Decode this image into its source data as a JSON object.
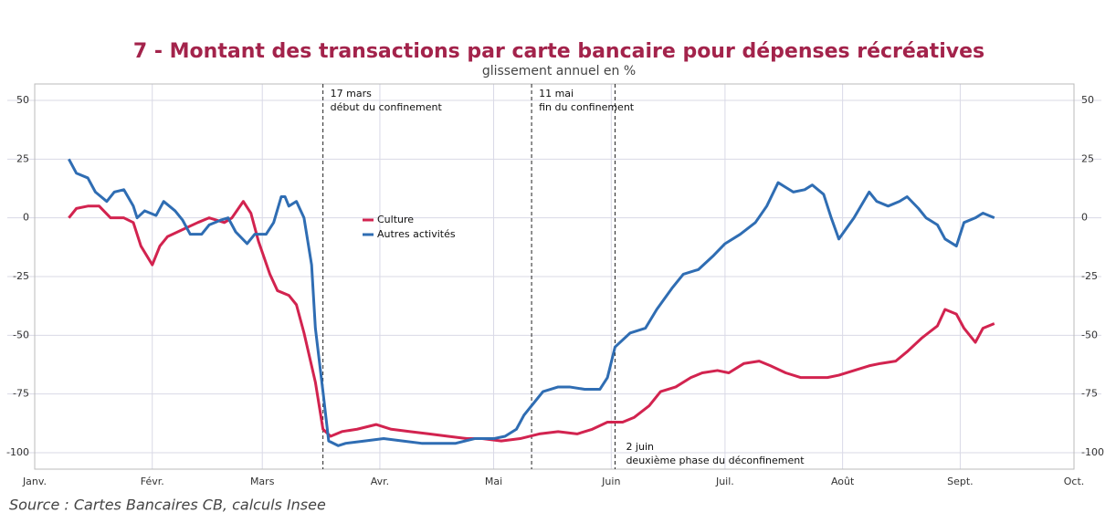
{
  "chart_data": {
    "type": "line",
    "title": "7 - Montant des transactions par carte bancaire pour dépenses récréatives",
    "subtitle": "glissement annuel en %",
    "source": "Source : Cartes Bancaires CB, calculs Insee",
    "xlim": [
      0,
      274
    ],
    "xticks": [
      {
        "value": 0,
        "label": "Janv."
      },
      {
        "value": 31,
        "label": "Févr."
      },
      {
        "value": 60,
        "label": "Mars"
      },
      {
        "value": 91,
        "label": "Avr."
      },
      {
        "value": 121,
        "label": "Mai"
      },
      {
        "value": 152,
        "label": "Juin"
      },
      {
        "value": 182,
        "label": "Juil."
      },
      {
        "value": 213,
        "label": "Août"
      },
      {
        "value": 244,
        "label": "Sept."
      },
      {
        "value": 274,
        "label": "Oct."
      }
    ],
    "ylim": [
      -107,
      57
    ],
    "yticks": [
      50,
      25,
      0,
      -25,
      -50,
      -75,
      -100
    ],
    "y2lim": [
      -107,
      57
    ],
    "y2ticks": [
      50,
      25,
      0,
      -25,
      -50,
      -75,
      -100
    ],
    "grid": true,
    "annotations": [
      {
        "x": 76,
        "text": [
          "17 mars",
          "début du confinement"
        ],
        "position": "top"
      },
      {
        "x": 131,
        "text": [
          "11 mai",
          "fin du confinement"
        ],
        "position": "top"
      },
      {
        "x": 153,
        "text": [
          "2 juin",
          "deuxième phase du déconfinement"
        ],
        "position": "bottom"
      }
    ],
    "series": [
      {
        "name": "Culture",
        "color": "#d2234f",
        "x": [
          9,
          11,
          14,
          17,
          20,
          23.5,
          26,
          28,
          31,
          33,
          35,
          39,
          43,
          46,
          50,
          52,
          55,
          57,
          59,
          62,
          64,
          67,
          69,
          71,
          74,
          76,
          78,
          81,
          85,
          90,
          94,
          99,
          104,
          109,
          114,
          118,
          123,
          128,
          133,
          138,
          143,
          147,
          151,
          155,
          158,
          162,
          165,
          169,
          173,
          176,
          180,
          183,
          187,
          191,
          194,
          198,
          202,
          205,
          209,
          212,
          216,
          220,
          223,
          227,
          230,
          234,
          238,
          240,
          243,
          245,
          248,
          250,
          253
        ],
        "values": [
          0,
          4,
          5,
          5,
          0,
          0,
          -2,
          -12,
          -20,
          -12,
          -8,
          -5,
          -2,
          0,
          -2,
          0,
          7,
          2,
          -10,
          -24,
          -31,
          -33,
          -37,
          -49,
          -70,
          -90,
          -93,
          -91,
          -90,
          -88,
          -90,
          -91,
          -92,
          -93,
          -94,
          -94,
          -95,
          -94,
          -92,
          -91,
          -92,
          -90,
          -87,
          -87,
          -85,
          -80,
          -74,
          -72,
          -68,
          -66,
          -65,
          -66,
          -62,
          -61,
          -63,
          -66,
          -68,
          -68,
          -68,
          -67,
          -65,
          -63,
          -62,
          -61,
          -57,
          -51,
          -46,
          -39,
          -41,
          -47,
          -53,
          -47,
          -45
        ]
      },
      {
        "name": "Autres activités",
        "color": "#2f6db3",
        "x": [
          9,
          11,
          14,
          16,
          19,
          21,
          23.5,
          26,
          27,
          29,
          32,
          34,
          37,
          39,
          41,
          44,
          46,
          49,
          51,
          53,
          56,
          58,
          61,
          63,
          65,
          66,
          67,
          69,
          71,
          73,
          74,
          76,
          77.5,
          80,
          82,
          87,
          92,
          97,
          102,
          106,
          111,
          116,
          121,
          124,
          127,
          129,
          132,
          134,
          138,
          141,
          145,
          149,
          151,
          153,
          157,
          161,
          164,
          168,
          171,
          175,
          179,
          182,
          186,
          190,
          193,
          196,
          198,
          200,
          203,
          205,
          208,
          210,
          212,
          216,
          220,
          222,
          225,
          228,
          230,
          233,
          235,
          238,
          240,
          243,
          245,
          248,
          250,
          253
        ],
        "values": [
          25,
          19,
          17,
          11,
          7,
          11,
          12,
          5,
          0,
          3,
          1,
          7,
          3,
          -1,
          -7,
          -7,
          -3,
          -1,
          0,
          -6,
          -11,
          -7,
          -7,
          -2,
          9,
          9,
          5,
          7,
          0,
          -20,
          -47,
          -74,
          -95,
          -97,
          -96,
          -95,
          -94,
          -95,
          -96,
          -96,
          -96,
          -94,
          -94,
          -93,
          -90,
          -84,
          -78,
          -74,
          -72,
          -72,
          -73,
          -73,
          -68,
          -55,
          -49,
          -47,
          -39,
          -30,
          -24,
          -22,
          -16,
          -11,
          -7,
          -2,
          5,
          15,
          13,
          11,
          12,
          14,
          10,
          0,
          -9,
          0,
          11,
          7,
          5,
          7,
          9,
          4,
          0,
          -3,
          -9,
          -12,
          -2,
          0,
          2,
          0
        ]
      }
    ]
  }
}
